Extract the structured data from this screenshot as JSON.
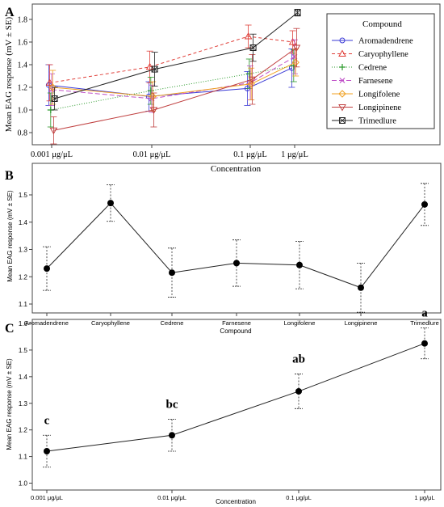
{
  "chart_data": [
    {
      "panel": "A",
      "type": "line",
      "categories": [
        "0.001 μg/μL",
        "0.01 μg/μL",
        "0.1 μg/μL",
        "1 μg/μL"
      ],
      "xlabel": "Concentration",
      "ylabel": "Mean EAG response (mV ± SE)",
      "ylim": [
        0.6,
        1.9
      ],
      "yticks": [
        "0.8",
        "1.0",
        "1.2",
        "1.4",
        "1.6",
        "1.8"
      ],
      "legend_title": "Compound",
      "legend_position": "right",
      "series": [
        {
          "name": "Aromadendrene",
          "color": "#3a3ad6",
          "marker": "circle",
          "dash": "",
          "values": [
            1.22,
            1.12,
            1.19,
            1.37
          ],
          "err": [
            0.18,
            0.13,
            0.15,
            0.17
          ]
        },
        {
          "name": "Caryophyllene",
          "color": "#e0403a",
          "marker": "triangle-up",
          "dash": "4,3",
          "values": [
            1.24,
            1.38,
            1.65,
            1.6
          ],
          "err": [
            0.16,
            0.14,
            0.1,
            0.1
          ]
        },
        {
          "name": "Cedrene",
          "color": "#2a9a2a",
          "marker": "plus",
          "dash": "1,2",
          "values": [
            1.0,
            1.17,
            1.32,
            1.39
          ],
          "err": [
            0.15,
            0.12,
            0.13,
            0.14
          ]
        },
        {
          "name": "Farnesene",
          "color": "#c050c8",
          "marker": "cross",
          "dash": "6,3",
          "values": [
            1.18,
            1.1,
            1.24,
            1.47
          ],
          "err": [
            0.14,
            0.12,
            0.15,
            0.15
          ]
        },
        {
          "name": "Longifolene",
          "color": "#f0a020",
          "marker": "diamond",
          "dash": "",
          "values": [
            1.2,
            1.12,
            1.23,
            1.42
          ],
          "err": [
            0.15,
            0.13,
            0.14,
            0.12
          ]
        },
        {
          "name": "Longipinene",
          "color": "#c04040",
          "marker": "triangle-down",
          "dash": "",
          "values": [
            0.82,
            1.0,
            1.27,
            1.55
          ],
          "err": [
            0.12,
            0.15,
            0.22,
            0.17
          ]
        },
        {
          "name": "Trimedlure",
          "color": "#222222",
          "marker": "square-x",
          "dash": "",
          "values": [
            1.1,
            1.36,
            1.55,
            1.86
          ],
          "err": [
            0.1,
            0.15,
            0.12,
            0.03
          ]
        }
      ]
    },
    {
      "panel": "B",
      "type": "line",
      "categories": [
        "Aromadendrene",
        "Caryophyllene",
        "Cedrene",
        "Farnesene",
        "Longifolene",
        "Longipinene",
        "Trimedlure"
      ],
      "xlabel": "Compound",
      "ylabel": "Mean EAG response (mV ± SE)",
      "ylim": [
        1.05,
        1.55
      ],
      "yticks": [
        "1.1",
        "1.2",
        "1.3",
        "1.4",
        "1.5"
      ],
      "values": [
        1.23,
        1.47,
        1.215,
        1.25,
        1.243,
        1.16,
        1.465
      ],
      "err": [
        0.08,
        0.067,
        0.09,
        0.085,
        0.087,
        0.09,
        0.077
      ]
    },
    {
      "panel": "C",
      "type": "line",
      "categories": [
        "0.001 μg/μL",
        "0.01 μg/μL",
        "0.1 μg/μL",
        "1 μg/μL"
      ],
      "xlabel": "Concentration",
      "ylabel": "Mean EAG response (mV ± SE)",
      "ylim": [
        1.0,
        1.6
      ],
      "yticks": [
        "1.0",
        "1.1",
        "1.2",
        "1.3",
        "1.4",
        "1.5",
        "1.6"
      ],
      "values": [
        1.12,
        1.18,
        1.345,
        1.525
      ],
      "err": [
        0.06,
        0.06,
        0.065,
        0.058
      ],
      "annotations": [
        "c",
        "bc",
        "ab",
        "a"
      ]
    }
  ]
}
